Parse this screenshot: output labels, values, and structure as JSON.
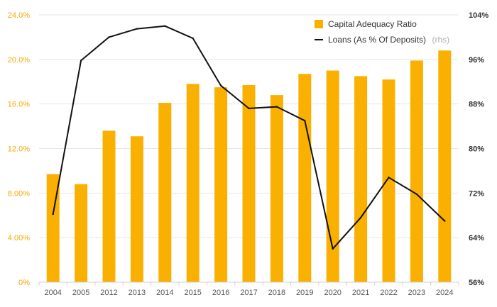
{
  "chart_data": {
    "type": "bar+line",
    "categories": [
      "2004",
      "2005",
      "2012",
      "2013",
      "2014",
      "2015",
      "2016",
      "2017",
      "2018",
      "2019",
      "2020",
      "2021",
      "2022",
      "2023",
      "2024"
    ],
    "series": [
      {
        "name": "Capital Adequacy Ratio",
        "type": "bar",
        "axis": "left",
        "color": "#f9b000",
        "values": [
          9.7,
          8.8,
          13.6,
          13.1,
          16.1,
          17.8,
          17.5,
          17.7,
          16.8,
          18.7,
          19.0,
          18.5,
          18.2,
          19.9,
          20.8
        ]
      },
      {
        "name": "Loans (As % Of Deposits)",
        "name_suffix": "(rhs)",
        "type": "line",
        "axis": "right",
        "color": "#111111",
        "values": [
          68.2,
          95.8,
          100.0,
          101.5,
          102.0,
          99.8,
          91.3,
          87.2,
          87.5,
          85.0,
          62.0,
          67.6,
          74.8,
          71.8,
          67.0
        ]
      }
    ],
    "y_left": {
      "min": 0,
      "max": 24,
      "ticks": [
        "0%",
        "4.00%",
        "8.00%",
        "12.0%",
        "16.0%",
        "20.0%",
        "24.0%"
      ]
    },
    "y_right": {
      "min": 56,
      "max": 104,
      "ticks": [
        "56%",
        "64%",
        "72%",
        "80%",
        "88%",
        "96%",
        "104%"
      ]
    },
    "grid": true,
    "legend_position": "top-right",
    "colors": {
      "bar": "#f9b000",
      "line": "#111111",
      "left_ticks": "#f5a800",
      "right_ticks": "#333333",
      "grid": "#e6e6e6"
    }
  }
}
